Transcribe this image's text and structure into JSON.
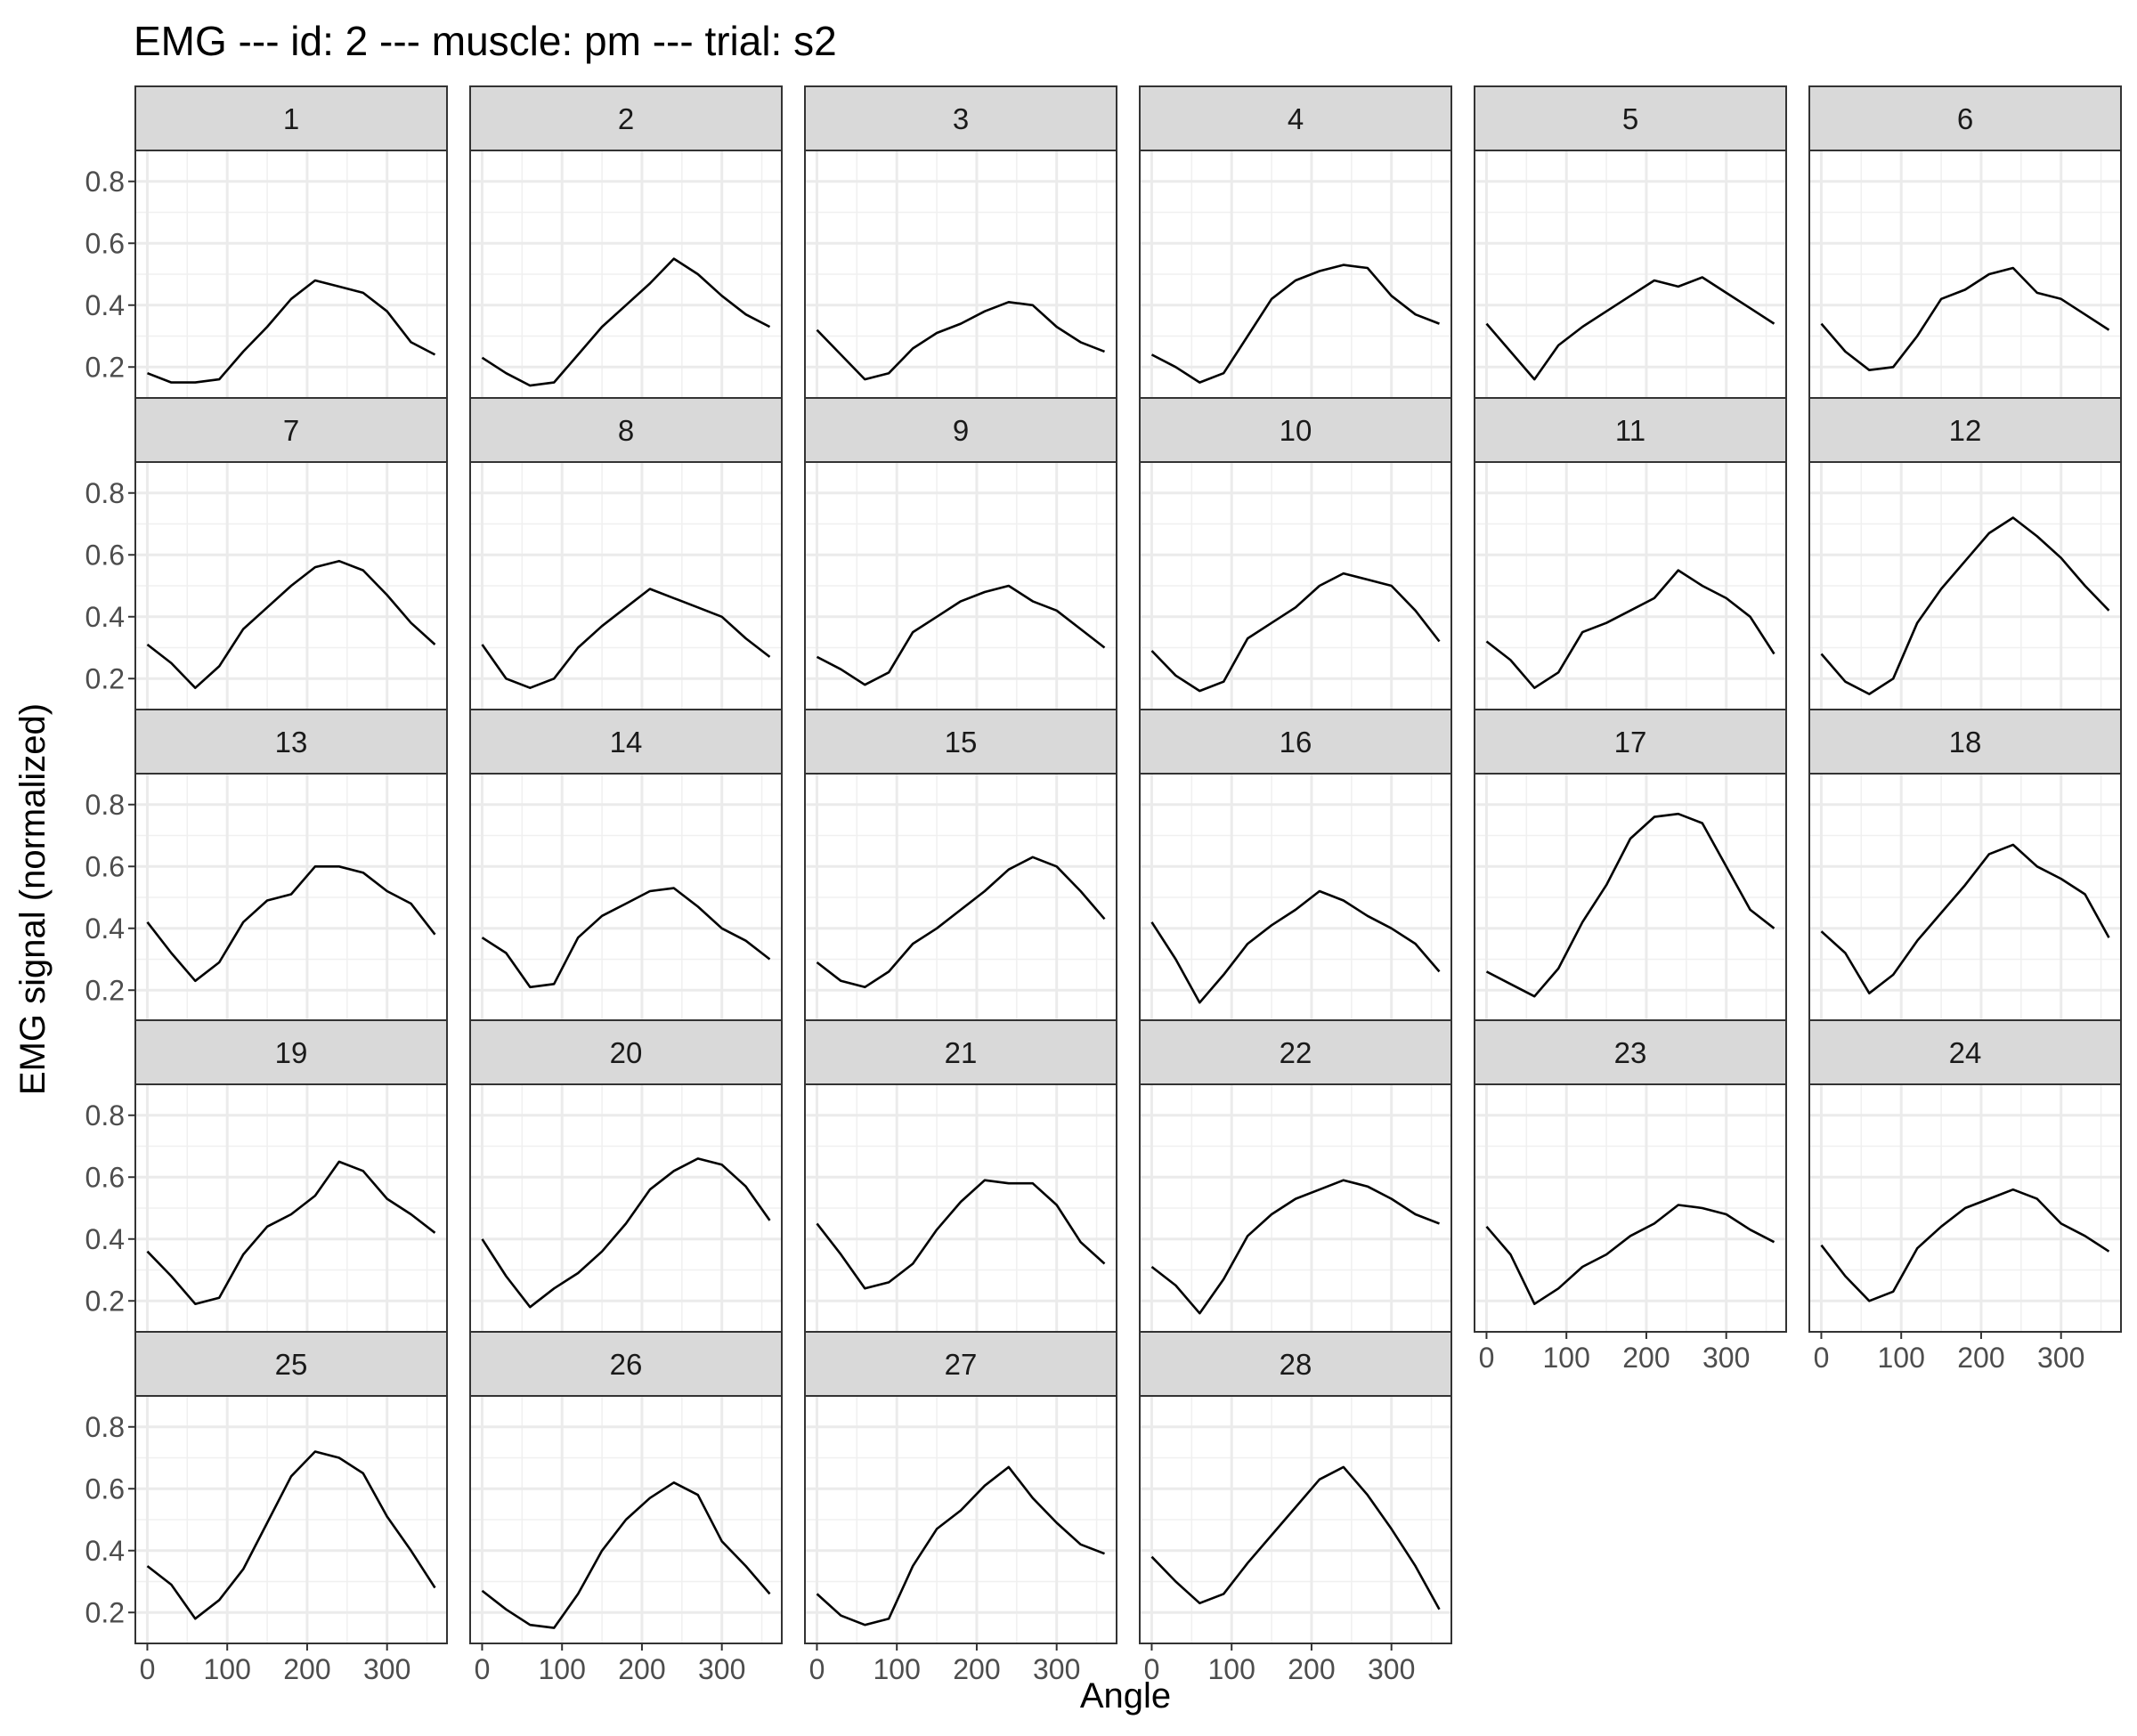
{
  "chart_data": {
    "type": "line",
    "title": "EMG --- id: 2 --- muscle: pm --- trial: s2",
    "xlabel": "Angle",
    "ylabel": "EMG signal (normalized)",
    "xlim": [
      -15,
      375
    ],
    "ylim": [
      0.1,
      0.9
    ],
    "x_ticks": [
      0,
      100,
      200,
      300
    ],
    "y_ticks": [
      0.2,
      0.4,
      0.6,
      0.8
    ],
    "x_tick_labels": [
      "0",
      "100",
      "200",
      "300"
    ],
    "y_tick_labels": [
      "0.2",
      "0.4",
      "0.6",
      "0.8"
    ],
    "grid": true,
    "facet_layout": {
      "columns": 6,
      "rows": 5
    },
    "line_color": "#000000",
    "strip_color": "#d9d9d9",
    "x": [
      0,
      30,
      60,
      90,
      120,
      150,
      180,
      210,
      240,
      270,
      300,
      330,
      360
    ],
    "panels": [
      {
        "label": "1",
        "values": [
          0.18,
          0.15,
          0.15,
          0.16,
          0.25,
          0.33,
          0.42,
          0.48,
          0.46,
          0.44,
          0.38,
          0.28,
          0.24
        ]
      },
      {
        "label": "2",
        "values": [
          0.23,
          0.18,
          0.14,
          0.15,
          0.24,
          0.33,
          0.4,
          0.47,
          0.55,
          0.5,
          0.43,
          0.37,
          0.33
        ]
      },
      {
        "label": "3",
        "values": [
          0.32,
          0.24,
          0.16,
          0.18,
          0.26,
          0.31,
          0.34,
          0.38,
          0.41,
          0.4,
          0.33,
          0.28,
          0.25
        ]
      },
      {
        "label": "4",
        "values": [
          0.24,
          0.2,
          0.15,
          0.18,
          0.3,
          0.42,
          0.48,
          0.51,
          0.53,
          0.52,
          0.43,
          0.37,
          0.34
        ]
      },
      {
        "label": "5",
        "values": [
          0.34,
          0.25,
          0.16,
          0.27,
          0.33,
          0.38,
          0.43,
          0.48,
          0.46,
          0.49,
          0.44,
          0.39,
          0.34
        ]
      },
      {
        "label": "6",
        "values": [
          0.34,
          0.25,
          0.19,
          0.2,
          0.3,
          0.42,
          0.45,
          0.5,
          0.52,
          0.44,
          0.42,
          0.37,
          0.32
        ]
      },
      {
        "label": "7",
        "values": [
          0.31,
          0.25,
          0.17,
          0.24,
          0.36,
          0.43,
          0.5,
          0.56,
          0.58,
          0.55,
          0.47,
          0.38,
          0.31
        ]
      },
      {
        "label": "8",
        "values": [
          0.31,
          0.2,
          0.17,
          0.2,
          0.3,
          0.37,
          0.43,
          0.49,
          0.46,
          0.43,
          0.4,
          0.33,
          0.27
        ]
      },
      {
        "label": "9",
        "values": [
          0.27,
          0.23,
          0.18,
          0.22,
          0.35,
          0.4,
          0.45,
          0.48,
          0.5,
          0.45,
          0.42,
          0.36,
          0.3
        ]
      },
      {
        "label": "10",
        "values": [
          0.29,
          0.21,
          0.16,
          0.19,
          0.33,
          0.38,
          0.43,
          0.5,
          0.54,
          0.52,
          0.5,
          0.42,
          0.32
        ]
      },
      {
        "label": "11",
        "values": [
          0.32,
          0.26,
          0.17,
          0.22,
          0.35,
          0.38,
          0.42,
          0.46,
          0.55,
          0.5,
          0.46,
          0.4,
          0.28
        ]
      },
      {
        "label": "12",
        "values": [
          0.28,
          0.19,
          0.15,
          0.2,
          0.38,
          0.49,
          0.58,
          0.67,
          0.72,
          0.66,
          0.59,
          0.5,
          0.42
        ]
      },
      {
        "label": "13",
        "values": [
          0.42,
          0.32,
          0.23,
          0.29,
          0.42,
          0.49,
          0.51,
          0.6,
          0.6,
          0.58,
          0.52,
          0.48,
          0.38
        ]
      },
      {
        "label": "14",
        "values": [
          0.37,
          0.32,
          0.21,
          0.22,
          0.37,
          0.44,
          0.48,
          0.52,
          0.53,
          0.47,
          0.4,
          0.36,
          0.3
        ]
      },
      {
        "label": "15",
        "values": [
          0.29,
          0.23,
          0.21,
          0.26,
          0.35,
          0.4,
          0.46,
          0.52,
          0.59,
          0.63,
          0.6,
          0.52,
          0.43
        ]
      },
      {
        "label": "16",
        "values": [
          0.42,
          0.3,
          0.16,
          0.25,
          0.35,
          0.41,
          0.46,
          0.52,
          0.49,
          0.44,
          0.4,
          0.35,
          0.26
        ]
      },
      {
        "label": "17",
        "values": [
          0.26,
          0.22,
          0.18,
          0.27,
          0.42,
          0.54,
          0.69,
          0.76,
          0.77,
          0.74,
          0.6,
          0.46,
          0.4
        ]
      },
      {
        "label": "18",
        "values": [
          0.39,
          0.32,
          0.19,
          0.25,
          0.36,
          0.45,
          0.54,
          0.64,
          0.67,
          0.6,
          0.56,
          0.51,
          0.37
        ]
      },
      {
        "label": "19",
        "values": [
          0.36,
          0.28,
          0.19,
          0.21,
          0.35,
          0.44,
          0.48,
          0.54,
          0.65,
          0.62,
          0.53,
          0.48,
          0.42
        ]
      },
      {
        "label": "20",
        "values": [
          0.4,
          0.28,
          0.18,
          0.24,
          0.29,
          0.36,
          0.45,
          0.56,
          0.62,
          0.66,
          0.64,
          0.57,
          0.46
        ]
      },
      {
        "label": "21",
        "values": [
          0.45,
          0.35,
          0.24,
          0.26,
          0.32,
          0.43,
          0.52,
          0.59,
          0.58,
          0.58,
          0.51,
          0.39,
          0.32
        ]
      },
      {
        "label": "22",
        "values": [
          0.31,
          0.25,
          0.16,
          0.27,
          0.41,
          0.48,
          0.53,
          0.56,
          0.59,
          0.57,
          0.53,
          0.48,
          0.45
        ]
      },
      {
        "label": "23",
        "values": [
          0.44,
          0.35,
          0.19,
          0.24,
          0.31,
          0.35,
          0.41,
          0.45,
          0.51,
          0.5,
          0.48,
          0.43,
          0.39
        ]
      },
      {
        "label": "24",
        "values": [
          0.38,
          0.28,
          0.2,
          0.23,
          0.37,
          0.44,
          0.5,
          0.53,
          0.56,
          0.53,
          0.45,
          0.41,
          0.36
        ]
      },
      {
        "label": "25",
        "values": [
          0.35,
          0.29,
          0.18,
          0.24,
          0.34,
          0.49,
          0.64,
          0.72,
          0.7,
          0.65,
          0.51,
          0.4,
          0.28
        ]
      },
      {
        "label": "26",
        "values": [
          0.27,
          0.21,
          0.16,
          0.15,
          0.26,
          0.4,
          0.5,
          0.57,
          0.62,
          0.58,
          0.43,
          0.35,
          0.26
        ]
      },
      {
        "label": "27",
        "values": [
          0.26,
          0.19,
          0.16,
          0.18,
          0.35,
          0.47,
          0.53,
          0.61,
          0.67,
          0.57,
          0.49,
          0.42,
          0.39
        ]
      },
      {
        "label": "28",
        "values": [
          0.38,
          0.3,
          0.23,
          0.26,
          0.36,
          0.45,
          0.54,
          0.63,
          0.67,
          0.58,
          0.47,
          0.35,
          0.21
        ]
      }
    ]
  }
}
